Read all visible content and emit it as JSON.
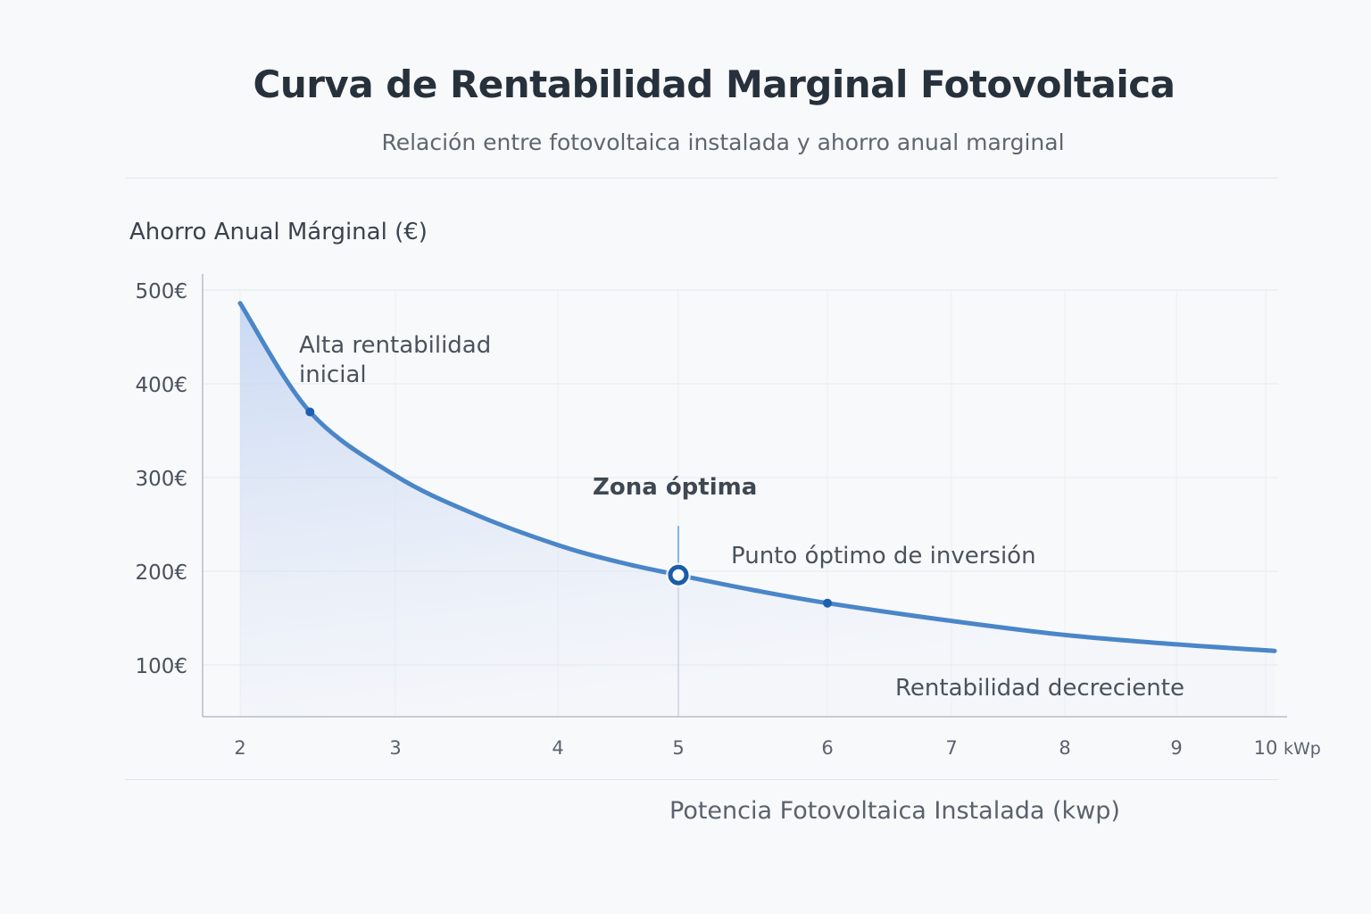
{
  "chart_data": {
    "type": "area",
    "title": "Curva de Rentabilidad Marginal Fotovoltaica",
    "subtitle": "Relación entre fotovoltaica instalada y ahorro anual marginal",
    "ylabel": "Ahorro Anual Márginal (€)",
    "xlabel": "Potencia Fotovoltaica Instalada (kwp)",
    "x_unit": "kWp",
    "ylim": [
      45,
      515
    ],
    "xlim": [
      1.75,
      10.15
    ],
    "grid": true,
    "y_ticks": [
      {
        "value": 500,
        "label": "500€"
      },
      {
        "value": 400,
        "label": "400€"
      },
      {
        "value": 300,
        "label": "300€"
      },
      {
        "value": 200,
        "label": "200€"
      },
      {
        "value": 100,
        "label": "100€"
      }
    ],
    "x_ticks": [
      {
        "value": 2,
        "label": "2"
      },
      {
        "value": 3,
        "label": "3"
      },
      {
        "value": 4,
        "label": "4"
      },
      {
        "value": 5,
        "label": "5"
      },
      {
        "value": 6,
        "label": "6"
      },
      {
        "value": 7,
        "label": "7"
      },
      {
        "value": 8,
        "label": "8"
      },
      {
        "value": 9,
        "label": "9"
      },
      {
        "value": 10,
        "label": "10"
      }
    ],
    "series": [
      {
        "name": "Ahorro anual marginal",
        "color": "#4a86c8",
        "x": [
          2,
          2.45,
          3,
          3.5,
          4,
          4.5,
          5,
          5.5,
          6,
          7,
          8,
          9,
          10.1
        ],
        "y": [
          486,
          370,
          302,
          260,
          228,
          210,
          196,
          180,
          166,
          147,
          132,
          122,
          115
        ]
      }
    ],
    "markers": [
      {
        "x": 2.45,
        "y": 370
      },
      {
        "x": 6,
        "y": 166
      }
    ],
    "optimum": {
      "x": 5,
      "y": 196,
      "label": "Punto óptimo de inversión"
    },
    "annotations": [
      {
        "text_lines": [
          "Alta rentabilidad",
          "inicial"
        ]
      },
      {
        "text": "Zona óptima"
      },
      {
        "text": "Rentabilidad decreciente"
      }
    ]
  }
}
